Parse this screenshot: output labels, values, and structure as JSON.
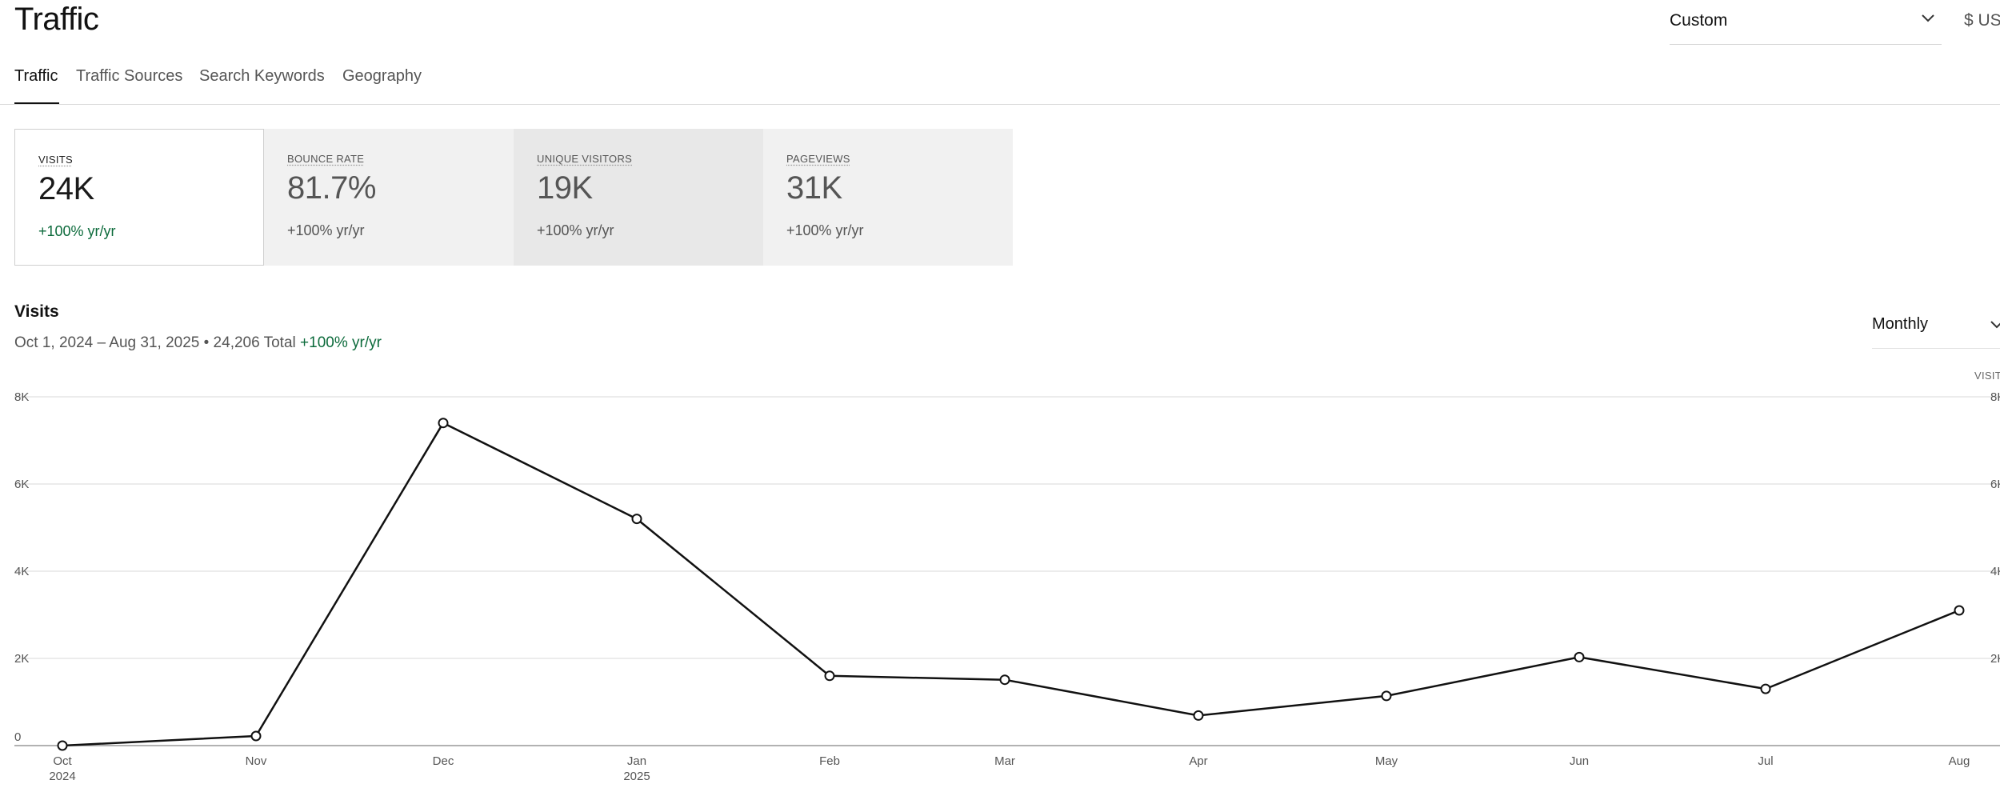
{
  "header": {
    "title": "Traffic"
  },
  "range": {
    "value": "Custom"
  },
  "currency": {
    "label": "$ USD"
  },
  "tabs": [
    {
      "label": "Traffic"
    },
    {
      "label": "Traffic Sources"
    },
    {
      "label": "Search Keywords"
    },
    {
      "label": "Geography"
    }
  ],
  "kpis": [
    {
      "label": "VISITS",
      "value": "24K",
      "change": "+100% yr/yr"
    },
    {
      "label": "BOUNCE RATE",
      "value": "81.7%",
      "change": "+100% yr/yr"
    },
    {
      "label": "UNIQUE VISITORS",
      "value": "19K",
      "change": "+100% yr/yr"
    },
    {
      "label": "PAGEVIEWS",
      "value": "31K",
      "change": "+100% yr/yr"
    }
  ],
  "visits": {
    "title": "Visits",
    "subtitle": "Oct 1, 2024 – Aug 31, 2025 • 24,206 Total",
    "change": "+100% yr/yr",
    "interval": "Monthly",
    "right_axis_title": "VISITS"
  },
  "colors": {
    "line": "#111111",
    "grid": "#e6e6e6",
    "positive": "#0d6b3c"
  },
  "chart_data": {
    "type": "line",
    "title": "Visits",
    "x": [
      "Oct 2024",
      "Nov",
      "Dec",
      "Jan 2025",
      "Feb",
      "Mar",
      "Apr",
      "May",
      "Jun",
      "Jul",
      "Aug"
    ],
    "x_tick_labels": [
      [
        "Oct",
        "2024"
      ],
      [
        "Nov"
      ],
      [
        "Dec"
      ],
      [
        "Jan",
        "2025"
      ],
      [
        "Feb"
      ],
      [
        "Mar"
      ],
      [
        "Apr"
      ],
      [
        "May"
      ],
      [
        "Jun"
      ],
      [
        "Jul"
      ],
      [
        "Aug"
      ]
    ],
    "series": [
      {
        "values": [
          0,
          220,
          7400,
          5200,
          1600,
          1510,
          690,
          1140,
          2030,
          1300,
          3100
        ]
      }
    ],
    "y_ticks": [
      "0",
      "2K",
      "4K",
      "6K",
      "8K"
    ],
    "ylim": [
      0,
      8000
    ],
    "grid": true
  }
}
